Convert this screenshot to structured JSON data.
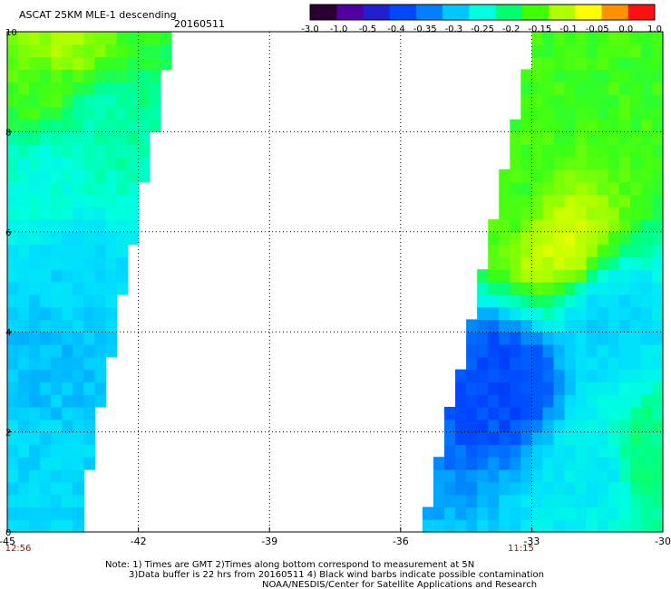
{
  "header": {
    "title": "ASCAT 25KM MLE-1 descending",
    "date": "20160511"
  },
  "colorbar": {
    "labels": [
      "-3.0",
      "-1.0",
      "-0.5",
      "-0.4",
      "-0.35",
      "-0.3",
      "-0.25",
      "-0.2",
      "-0.15",
      "-0.1",
      "-0.05",
      "0.0",
      "1.0"
    ],
    "colors": [
      "#2a0030",
      "#5000a0",
      "#2020d0",
      "#0048ff",
      "#0080ff",
      "#00c8ff",
      "#00ffe0",
      "#00ff70",
      "#40ff00",
      "#b0ff00",
      "#ffff00",
      "#ff9000",
      "#ff1010"
    ]
  },
  "chart_data": {
    "type": "heatmap",
    "title": "ASCAT 25KM MLE-1 descending",
    "subtitle": "20160511",
    "x_ticks": [
      "-45",
      "-42",
      "-39",
      "-36",
      "-33",
      "-30"
    ],
    "x_tick_values": [
      -45,
      -42,
      -39,
      -36,
      -33,
      -30
    ],
    "y_ticks": [
      "0",
      "2",
      "4",
      "6",
      "8",
      "10"
    ],
    "y_tick_values": [
      0,
      2,
      4,
      6,
      8,
      10
    ],
    "xlim": [
      -45,
      -30
    ],
    "ylim": [
      0,
      10
    ],
    "grid": true,
    "pass_times": [
      {
        "label": "12:56",
        "x": -45
      },
      {
        "label": "11:15",
        "x": -33
      }
    ],
    "swaths": [
      {
        "name": "west",
        "left_edge_lon": -45,
        "right_edge_bottom_lon": -43.4,
        "right_edge_top_lon": -41.2,
        "features": [
          {
            "lat": 9.7,
            "lon": -43.8,
            "value": -0.1
          },
          {
            "lat": 9.0,
            "lon": -44.0,
            "value": -0.15
          },
          {
            "lat": 8.2,
            "lon": -43.0,
            "value": -0.22
          },
          {
            "lat": 7.0,
            "lon": -44.0,
            "value": -0.25
          },
          {
            "lat": 5.2,
            "lon": -43.5,
            "value": -0.3
          },
          {
            "lat": 3.5,
            "lon": -44.2,
            "value": -0.32
          },
          {
            "lat": 1.0,
            "lon": -44.5,
            "value": -0.3
          }
        ]
      },
      {
        "name": "east",
        "left_edge_bottom_lon": -35.5,
        "left_edge_top_lon": -32.9,
        "right_edge_lon": -30,
        "features": [
          {
            "lat": 9.0,
            "lon": -32.0,
            "value": -0.15
          },
          {
            "lat": 5.8,
            "lon": -32.4,
            "value": -0.08
          },
          {
            "lat": 6.8,
            "lon": -33.5,
            "value": -0.15
          },
          {
            "lat": 3.0,
            "lon": -33.6,
            "value": -0.4
          },
          {
            "lat": 4.2,
            "lon": -31.3,
            "value": -0.3
          },
          {
            "lat": 1.3,
            "lon": -31.5,
            "value": -0.28
          },
          {
            "lat": 1.5,
            "lon": -30.4,
            "value": -0.2
          }
        ]
      }
    ]
  },
  "footer": {
    "line1": "Note: 1) Times are GMT 2)Times along bottom correspond to measurement at 5N",
    "line2": "3)Data buffer is 22 hrs from 20160511 4) Black wind barbs indicate possible contamination",
    "line3": "NOAA/NESDIS/Center for Satellite Applications and Research"
  }
}
